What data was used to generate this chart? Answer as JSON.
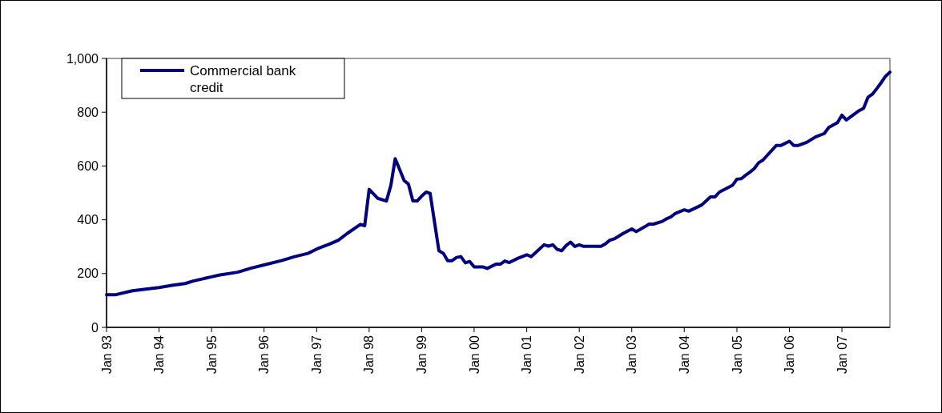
{
  "chart_data": {
    "type": "line",
    "x": [
      "1993-01",
      "1993-03",
      "1993-07",
      "1994-01",
      "1994-04",
      "1994-07",
      "1994-09",
      "1995-01",
      "1995-03",
      "1995-07",
      "1995-10",
      "1996-01",
      "1996-05",
      "1996-08",
      "1996-11",
      "1997-01",
      "1997-04",
      "1997-06",
      "1997-08",
      "1997-11",
      "1997-12",
      "1998-01",
      "1998-03",
      "1998-05",
      "1998-06",
      "1998-07",
      "1998-08",
      "1998-09",
      "1998-10",
      "1998-11",
      "1998-12",
      "1999-01",
      "1999-02",
      "1999-03",
      "1999-05",
      "1999-06",
      "1999-07",
      "1999-08",
      "1999-09",
      "1999-10",
      "1999-11",
      "1999-12",
      "2000-01",
      "2000-03",
      "2000-04",
      "2000-06",
      "2000-07",
      "2000-08",
      "2000-09",
      "2000-11",
      "2001-01",
      "2001-02",
      "2001-03",
      "2001-05",
      "2001-06",
      "2001-07",
      "2001-08",
      "2001-09",
      "2001-10",
      "2001-11",
      "2001-12",
      "2002-01",
      "2002-02",
      "2002-06",
      "2002-07",
      "2002-08",
      "2002-09",
      "2002-11",
      "2003-01",
      "2003-02",
      "2003-04",
      "2003-05",
      "2003-06",
      "2003-08",
      "2003-09",
      "2003-10",
      "2003-11",
      "2004-01",
      "2004-02",
      "2004-05",
      "2004-07",
      "2004-08",
      "2004-09",
      "2004-12",
      "2005-01",
      "2005-02",
      "2005-03",
      "2005-04",
      "2005-05",
      "2005-06",
      "2005-07",
      "2005-10",
      "2005-11",
      "2006-01",
      "2006-02",
      "2006-03",
      "2006-05",
      "2006-07",
      "2006-09",
      "2006-10",
      "2006-12",
      "2007-01",
      "2007-02",
      "2007-05",
      "2007-06",
      "2007-07",
      "2007-08",
      "2007-09",
      "2007-10",
      "2007-11",
      "2007-12"
    ],
    "series": [
      {
        "name": "Commercial bank credit",
        "color": "#000080",
        "values": [
          121,
          121,
          136,
          148,
          156,
          163,
          173,
          188,
          195,
          205,
          220,
          232,
          248,
          263,
          275,
          291,
          310,
          324,
          349,
          383,
          378,
          513,
          480,
          470,
          528,
          627,
          587,
          546,
          533,
          470,
          470,
          488,
          503,
          498,
          285,
          275,
          248,
          248,
          260,
          263,
          240,
          245,
          225,
          225,
          219,
          235,
          235,
          247,
          241,
          257,
          270,
          263,
          277,
          307,
          302,
          307,
          290,
          285,
          304,
          317,
          301,
          307,
          301,
          301,
          310,
          324,
          329,
          349,
          366,
          356,
          374,
          384,
          384,
          394,
          404,
          411,
          424,
          437,
          432,
          455,
          485,
          485,
          503,
          528,
          551,
          553,
          565,
          577,
          590,
          612,
          622,
          676,
          676,
          692,
          676,
          676,
          688,
          708,
          721,
          743,
          761,
          789,
          771,
          806,
          815,
          855,
          867,
          888,
          910,
          934,
          949
        ]
      }
    ],
    "xlim": [
      "1993-01",
      "2007-12"
    ],
    "xticks": [
      {
        "value": "1993-01",
        "label": "Jan 93"
      },
      {
        "value": "1994-01",
        "label": "Jan 94"
      },
      {
        "value": "1995-01",
        "label": "Jan 95"
      },
      {
        "value": "1996-01",
        "label": "Jan 96"
      },
      {
        "value": "1997-01",
        "label": "Jan 97"
      },
      {
        "value": "1998-01",
        "label": "Jan 98"
      },
      {
        "value": "1999-01",
        "label": "Jan 99"
      },
      {
        "value": "2000-01",
        "label": "Jan 00"
      },
      {
        "value": "2001-01",
        "label": "Jan 01"
      },
      {
        "value": "2002-01",
        "label": "Jan 02"
      },
      {
        "value": "2003-01",
        "label": "Jan 03"
      },
      {
        "value": "2004-01",
        "label": "Jan 04"
      },
      {
        "value": "2005-01",
        "label": "Jan 05"
      },
      {
        "value": "2006-01",
        "label": "Jan 06"
      },
      {
        "value": "2007-01",
        "label": "Jan 07"
      }
    ],
    "ylim": [
      0,
      1000
    ],
    "yticks": [
      0,
      200,
      400,
      600,
      800,
      {
        "value": 1000,
        "label": "1,000"
      }
    ],
    "legend": "top left",
    "grid": false,
    "line_style": "solid",
    "marker": "none"
  }
}
